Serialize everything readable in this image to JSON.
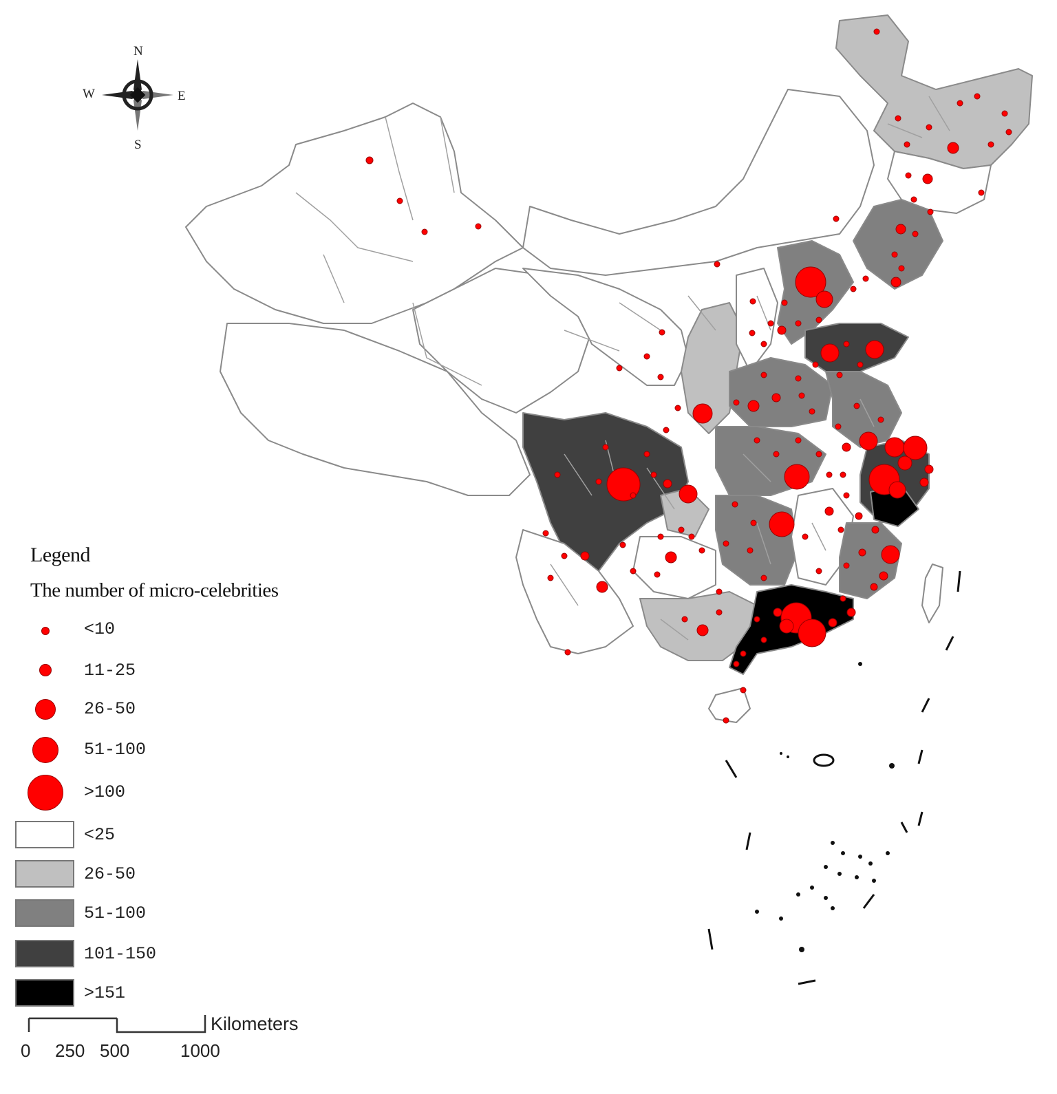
{
  "compass": {
    "n": "N",
    "s": "S",
    "e": "E",
    "w": "W"
  },
  "legend": {
    "title": "Legend",
    "subtitle": "The number of micro-celebrities",
    "dot_classes": [
      {
        "label": "<10"
      },
      {
        "label": "11-25"
      },
      {
        "label": "26-50"
      },
      {
        "label": "51-100"
      },
      {
        "label": ">100"
      }
    ],
    "fill_classes": [
      {
        "label": "<25",
        "color": "#ffffff"
      },
      {
        "label": "26-50",
        "color": "#c0c0c0"
      },
      {
        "label": "51-100",
        "color": "#808080"
      },
      {
        "label": "101-150",
        "color": "#404040"
      },
      {
        "label": ">151",
        "color": "#000000"
      }
    ]
  },
  "scale_bar": {
    "unit": "Kilometers",
    "ticks": [
      "0",
      "250",
      "500",
      "1000"
    ]
  },
  "colors": {
    "dot": "#ff0000",
    "boundary": "#888888"
  }
}
